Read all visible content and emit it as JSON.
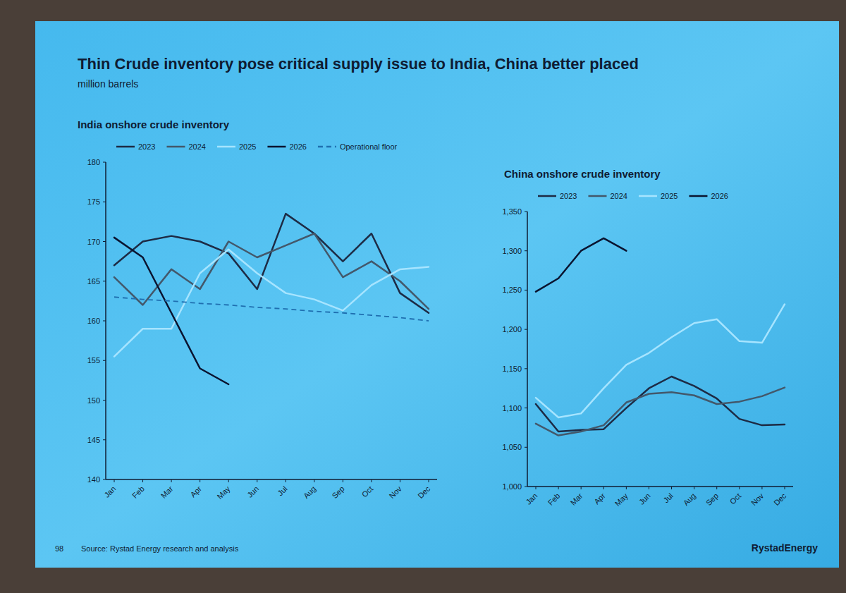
{
  "slide": {
    "title": "Thin Crude inventory pose critical supply issue to India, China better placed",
    "subtitle": "million barrels",
    "page": 98,
    "source": "Source: Rystad Energy research and analysis",
    "logo": "RystadEnergy"
  },
  "chart_data": [
    {
      "type": "line",
      "title": "India onshore crude inventory",
      "categories": [
        "Jan",
        "Feb",
        "Mar",
        "Apr",
        "May",
        "Jun",
        "Jul",
        "Aug",
        "Sep",
        "Oct",
        "Nov",
        "Dec"
      ],
      "series": [
        {
          "name": "2023",
          "color": "#1d2b45",
          "line_style": "solid",
          "values": [
            167,
            170,
            170.7,
            170,
            168.5,
            164,
            173.5,
            171,
            167.5,
            171,
            163.5,
            161
          ]
        },
        {
          "name": "2024",
          "color": "#43586b",
          "line_style": "solid",
          "values": [
            165.5,
            162,
            166.5,
            164,
            170,
            168,
            169.5,
            171,
            165.5,
            167.5,
            165,
            161.5
          ]
        },
        {
          "name": "2025",
          "color": "#a6e4ff",
          "line_style": "solid",
          "values": [
            155.5,
            159,
            159,
            166,
            169,
            166,
            163.5,
            162.7,
            161.3,
            164.5,
            166.5,
            166.8
          ]
        },
        {
          "name": "2026",
          "color": "#0a1430",
          "line_style": "solid",
          "values": [
            170.5,
            168,
            161,
            154,
            152,
            null,
            null,
            null,
            null,
            null,
            null,
            null
          ]
        },
        {
          "name": "Operational floor",
          "color": "#1f6fb0",
          "line_style": "dashed",
          "values": [
            163,
            162.7,
            162.5,
            162.2,
            162,
            161.7,
            161.5,
            161.2,
            161,
            160.7,
            160.4,
            160
          ]
        }
      ],
      "ylim": [
        140,
        180
      ],
      "yticks": [
        140,
        145,
        150,
        155,
        160,
        165,
        170,
        175,
        180
      ],
      "grid": false,
      "legend": "top"
    },
    {
      "type": "line",
      "title": "China onshore crude inventory",
      "categories": [
        "Jan",
        "Feb",
        "Mar",
        "Apr",
        "May",
        "Jun",
        "Jul",
        "Aug",
        "Sep",
        "Oct",
        "Nov",
        "Dec"
      ],
      "series": [
        {
          "name": "2023",
          "color": "#1d2b45",
          "line_style": "solid",
          "values": [
            1105,
            1070,
            1072,
            1073,
            1100,
            1125,
            1140,
            1128,
            1112,
            1086,
            1078,
            1079
          ]
        },
        {
          "name": "2024",
          "color": "#43586b",
          "line_style": "solid",
          "values": [
            1080,
            1065,
            1070,
            1078,
            1107,
            1118,
            1120,
            1116,
            1105,
            1108,
            1115,
            1126
          ]
        },
        {
          "name": "2025",
          "color": "#a6e4ff",
          "line_style": "solid",
          "values": [
            1113,
            1088,
            1093,
            1125,
            1155,
            1170,
            1190,
            1208,
            1213,
            1185,
            1183,
            1232
          ]
        },
        {
          "name": "2026",
          "color": "#0a1430",
          "line_style": "solid",
          "values": [
            1248,
            1265,
            1300,
            1316,
            1300,
            null,
            null,
            null,
            null,
            null,
            null,
            null
          ]
        }
      ],
      "ylim": [
        1000,
        1350
      ],
      "yticks": [
        {
          "value": 1000,
          "label": "1,000"
        },
        {
          "value": 1050,
          "label": "1,050"
        },
        {
          "value": 1100,
          "label": "1,100"
        },
        {
          "value": 1150,
          "label": "1,150"
        },
        {
          "value": 1200,
          "label": "1,200"
        },
        {
          "value": 1250,
          "label": "1,250"
        },
        {
          "value": 1300,
          "label": "1,300"
        },
        {
          "value": 1350,
          "label": "1,350"
        }
      ],
      "grid": false,
      "legend": "top"
    }
  ]
}
